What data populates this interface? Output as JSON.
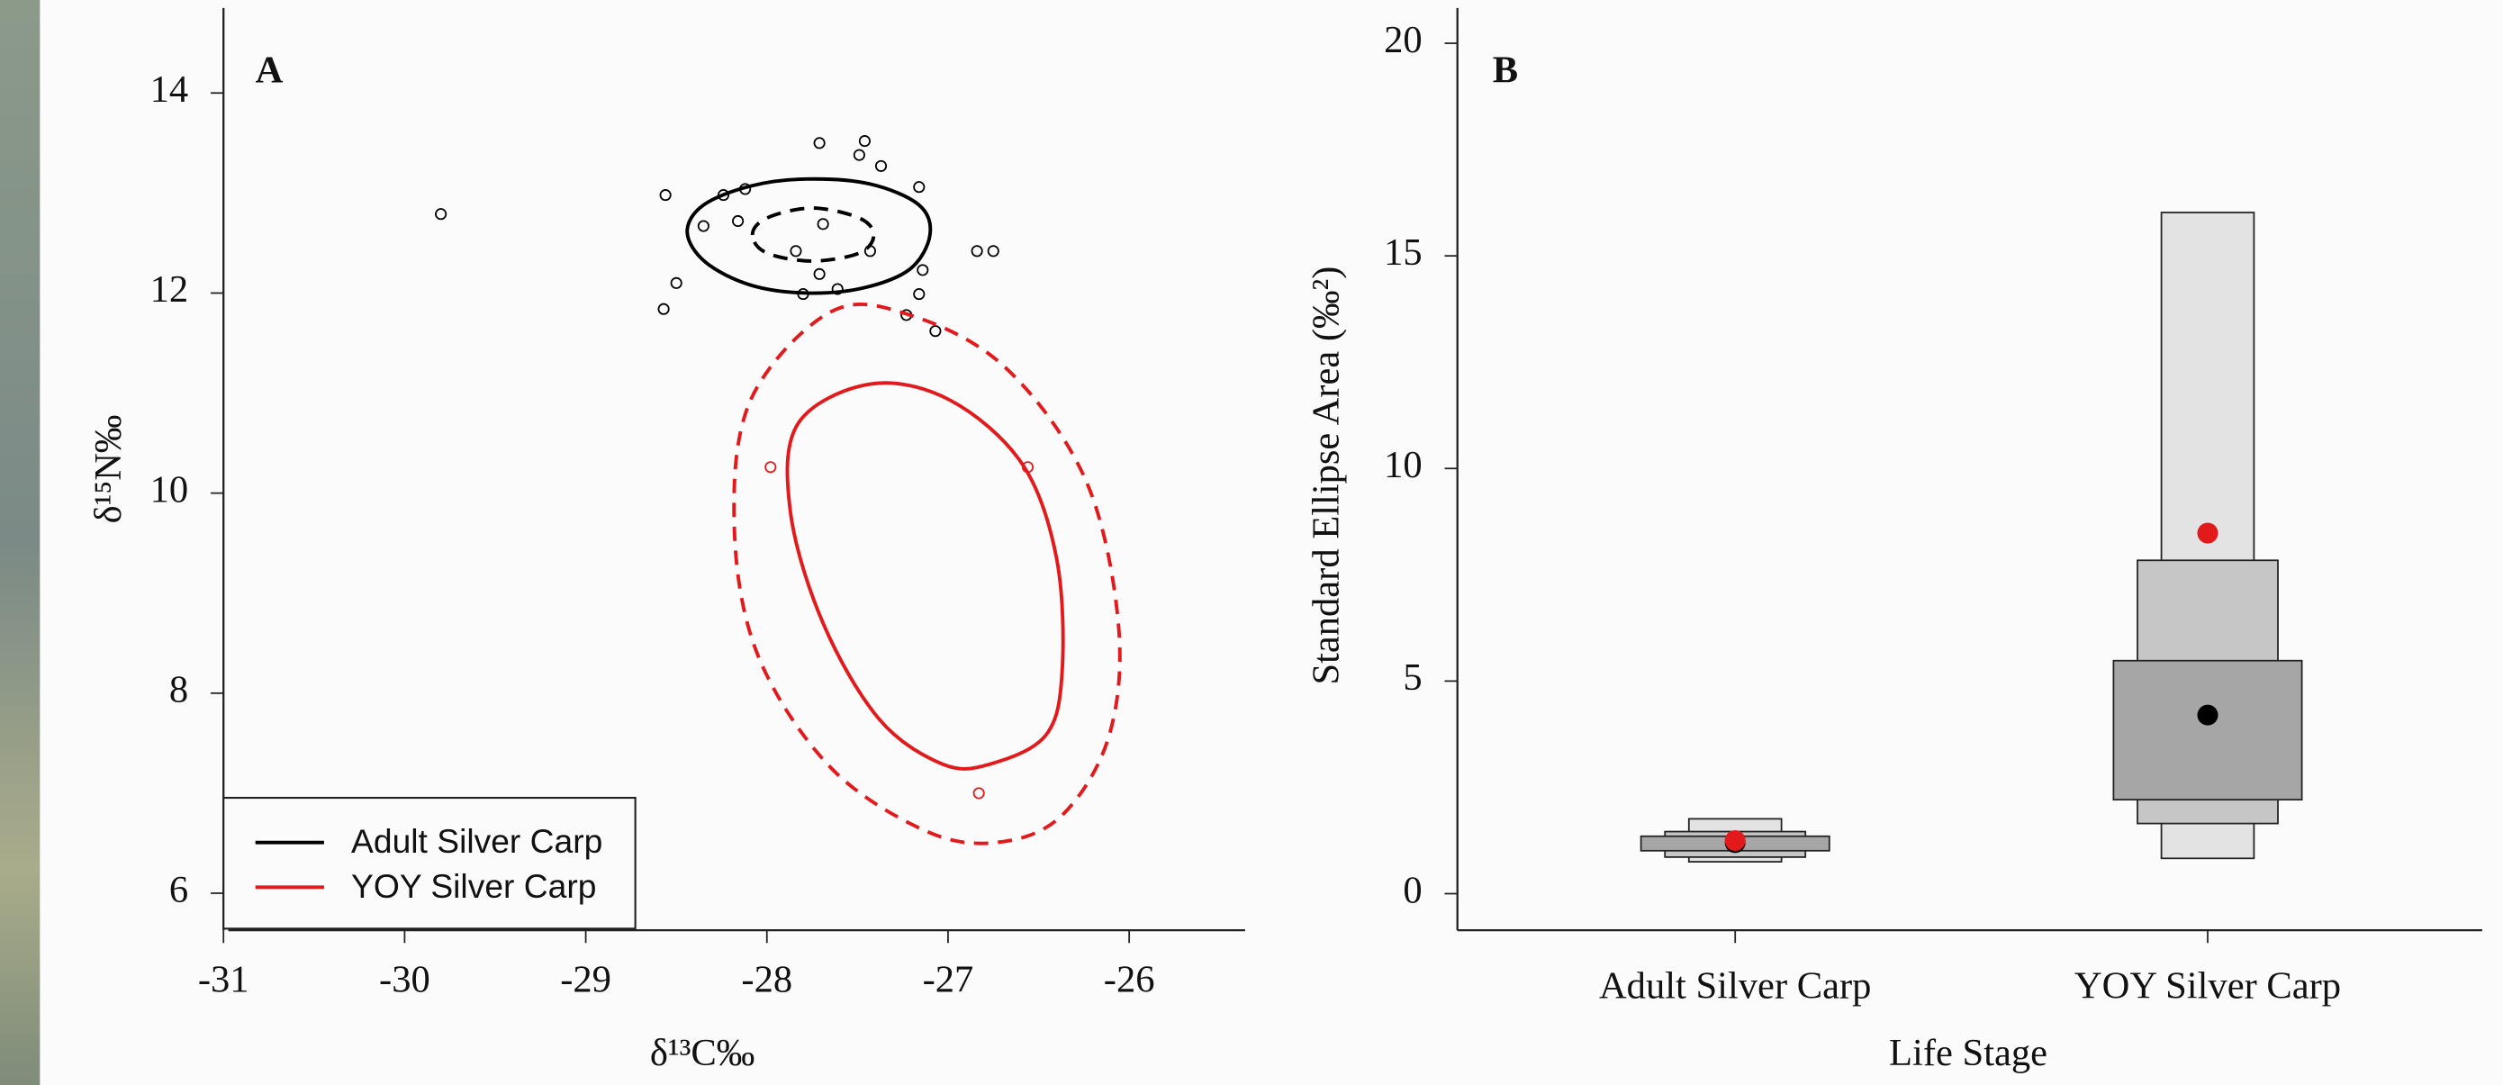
{
  "chart_data": [
    {
      "type": "scatter-ellipse",
      "panel_label": "A",
      "x_label": "δ¹³C‰",
      "y_label": "δ¹⁵N‰",
      "xlim": [
        -31.0,
        -25.36
      ],
      "ylim": [
        5.63,
        14.85
      ],
      "xticks": [
        -31,
        -30,
        -29,
        -28,
        -27,
        -26
      ],
      "yticks": [
        6,
        8,
        10,
        12,
        14
      ],
      "legend": "bottom-left",
      "series": [
        {
          "name": "Adult Silver Carp",
          "color": "#000000",
          "x": [
            -29.8,
            -28.56,
            -28.35,
            -28.24,
            -28.12,
            -28.16,
            -27.71,
            -27.46,
            -27.49,
            -27.37,
            -27.69,
            -27.84,
            -27.43,
            -27.16,
            -27.14,
            -27.16,
            -27.71,
            -27.61,
            -27.8,
            -28.5,
            -28.57,
            -27.23,
            -27.07,
            -26.84,
            -26.75
          ],
          "y": [
            12.79,
            12.98,
            12.67,
            12.98,
            13.04,
            12.72,
            13.5,
            13.52,
            13.38,
            13.27,
            12.69,
            12.42,
            12.42,
            13.06,
            12.23,
            11.99,
            12.19,
            12.04,
            11.99,
            12.1,
            11.84,
            11.78,
            11.62,
            12.42,
            12.42
          ],
          "ellipses": [
            {
              "dashed": false,
              "x": [
                -28.44,
                -28.35,
                -28.09,
                -27.78,
                -27.43,
                -27.16,
                -27.1,
                -27.21,
                -27.47,
                -27.78,
                -28.09,
                -28.34
              ],
              "y": [
                12.61,
                12.88,
                13.07,
                13.14,
                13.09,
                12.88,
                12.58,
                12.24,
                12.05,
                12.0,
                12.08,
                12.31
              ]
            },
            {
              "dashed": true,
              "x": [
                -28.08,
                -28.0,
                -27.75,
                -27.49,
                -27.41,
                -27.49,
                -27.75,
                -28.0
              ],
              "y": [
                12.58,
                12.75,
                12.85,
                12.75,
                12.58,
                12.4,
                12.32,
                12.4
              ]
            }
          ]
        },
        {
          "name": "YOY Silver Carp",
          "color": "#e31a1c",
          "x": [
            -27.98,
            -26.56,
            -26.83
          ],
          "y": [
            10.26,
            10.26,
            7.0
          ],
          "ellipses": [
            {
              "dashed": false,
              "x": [
                -27.43,
                -26.99,
                -26.59,
                -26.4,
                -26.37,
                -26.46,
                -26.77,
                -27.03,
                -27.38,
                -27.69,
                -27.87,
                -27.83
              ],
              "y": [
                11.09,
                10.93,
                10.29,
                9.34,
                8.22,
                7.58,
                7.29,
                7.29,
                7.74,
                8.7,
                9.81,
                10.69
              ]
            },
            {
              "dashed": true,
              "x": [
                -27.65,
                -27.21,
                -26.68,
                -26.24,
                -26.06,
                -26.11,
                -26.37,
                -26.72,
                -27.12,
                -27.65,
                -28.05,
                -28.18,
                -28.09
              ],
              "y": [
                11.81,
                11.78,
                11.25,
                10.13,
                8.7,
                7.58,
                6.78,
                6.51,
                6.62,
                7.26,
                8.38,
                9.66,
                10.93
              ]
            }
          ]
        }
      ]
    },
    {
      "type": "density-box",
      "panel_label": "B",
      "x_label": "Life Stage",
      "y_label": "Standard Ellipse Area (‰²)",
      "categories": [
        "Adult Silver Carp",
        "YOY Silver Carp"
      ],
      "ylim": [
        -0.86,
        20.83
      ],
      "yticks": [
        0,
        5,
        10,
        15,
        20
      ],
      "intervals": [
        {
          "color": "#e3e3e3",
          "ranges": [
            [
              0.75,
              1.76
            ],
            [
              0.83,
              16.02
            ]
          ]
        },
        {
          "color": "#c6c6c6",
          "ranges": [
            [
              0.86,
              1.46
            ],
            [
              1.65,
              7.84
            ]
          ]
        },
        {
          "color": "#a6a6a6",
          "ranges": [
            [
              1.01,
              1.35
            ],
            [
              2.21,
              5.48
            ]
          ]
        }
      ],
      "mode": {
        "color": "#e31a1c",
        "values": [
          1.25,
          8.48
        ]
      },
      "mean": {
        "color": "#000000",
        "values": [
          1.2,
          4.2
        ]
      }
    }
  ]
}
